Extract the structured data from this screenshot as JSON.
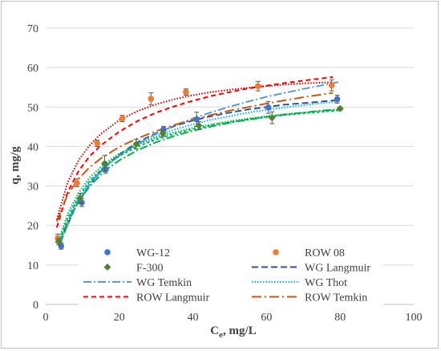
{
  "chart_data": {
    "type": "scatter",
    "title": "",
    "xlabel": "C",
    "xlabel_sub": "e",
    "xlabel_suffix": ", mg/L",
    "ylabel": "q, mg/g",
    "xlim": [
      0,
      100
    ],
    "ylim": [
      0,
      70
    ],
    "xticks": [
      0,
      20,
      40,
      60,
      80,
      100
    ],
    "yticks": [
      0,
      10,
      20,
      30,
      40,
      50,
      60,
      70
    ],
    "grid": "horizontal",
    "legend_position": "bottom-inside",
    "series": [
      {
        "name": "WG-12",
        "kind": "points",
        "marker": "circle",
        "color": "#4472C4",
        "x": [
          4.2,
          9.8,
          16.3,
          32.0,
          41.0,
          60.5,
          79.2
        ],
        "y": [
          14.8,
          25.8,
          34.2,
          44.3,
          46.9,
          49.9,
          52.0
        ],
        "err": [
          0.8,
          1.0,
          1.0,
          0.8,
          1.8,
          1.5,
          1.0
        ]
      },
      {
        "name": "ROW 08",
        "kind": "points",
        "marker": "circle",
        "color": "#ED7D31",
        "x": [
          3.3,
          8.5,
          14.0,
          20.8,
          28.6,
          38.1,
          57.7,
          77.7
        ],
        "y": [
          16.8,
          30.8,
          40.8,
          47.1,
          52.1,
          53.8,
          55.3,
          55.5
        ],
        "err": [
          1.0,
          1.0,
          0.8,
          0.8,
          1.5,
          0.8,
          1.2,
          1.4
        ]
      },
      {
        "name": "F-300",
        "kind": "points",
        "marker": "diamond",
        "color": "#548235",
        "x": [
          3.5,
          9.3,
          16.0,
          24.6,
          31.8,
          41.6,
          61.5,
          80.0
        ],
        "y": [
          15.9,
          26.9,
          35.7,
          40.6,
          43.3,
          45.3,
          47.3,
          49.6
        ],
        "err": [
          0.8,
          1.2,
          2.0,
          1.2,
          0.8,
          1.0,
          1.5,
          0.4
        ]
      },
      {
        "name": "WG Langmuir",
        "kind": "line",
        "dash": "8 4",
        "color": "#2F5597",
        "x": [
          4,
          8,
          12,
          16,
          20,
          25,
          30,
          35,
          40,
          45,
          50,
          55,
          60,
          65,
          70,
          75,
          80
        ],
        "y": [
          16.0,
          24.5,
          30.5,
          34.8,
          38.0,
          41.1,
          43.4,
          45.2,
          46.6,
          47.7,
          48.6,
          49.4,
          50.0,
          50.6,
          51.0,
          51.4,
          51.8
        ]
      },
      {
        "name": "WG Temkin",
        "kind": "line",
        "dash": "10 3 2 3",
        "color": "#5B9BD5",
        "x": [
          4,
          8,
          12,
          16,
          20,
          25,
          30,
          35,
          40,
          45,
          50,
          55,
          60,
          65,
          70,
          75,
          80
        ],
        "y": [
          15.5,
          25.0,
          30.6,
          34.6,
          37.7,
          40.7,
          43.2,
          45.3,
          47.1,
          48.7,
          50.1,
          51.4,
          52.6,
          53.6,
          54.6,
          55.5,
          56.4
        ]
      },
      {
        "name": "WG Thot",
        "kind": "line",
        "dash": "1.5 2",
        "color": "#00B0F0",
        "x": [
          4,
          8,
          12,
          16,
          20,
          25,
          30,
          35,
          40,
          45,
          50,
          55,
          60,
          65,
          70,
          75,
          80
        ],
        "y": [
          16.5,
          25.6,
          31.2,
          35.0,
          37.9,
          40.6,
          42.6,
          44.3,
          45.6,
          46.8,
          47.7,
          48.6,
          49.3,
          49.9,
          50.5,
          51.0,
          51.4
        ]
      },
      {
        "name": "ROW Langmuir",
        "kind": "line",
        "dash": "6 4",
        "color": "#FF0000",
        "x": [
          3,
          6,
          9,
          12,
          15,
          20,
          25,
          30,
          35,
          40,
          45,
          50,
          55,
          60,
          65,
          70,
          78
        ],
        "y": [
          19.5,
          28.5,
          33.9,
          37.6,
          40.3,
          43.8,
          46.5,
          48.6,
          50.2,
          51.6,
          52.8,
          53.8,
          54.7,
          55.4,
          56.1,
          56.7,
          57.6
        ]
      },
      {
        "name": "ROW Temkin",
        "kind": "line",
        "dash": "12 4 2 4",
        "color": "#C55A11",
        "x": [
          3,
          6,
          9,
          12,
          15,
          20,
          25,
          30,
          35,
          40,
          45,
          50,
          55,
          60,
          65,
          70,
          78
        ],
        "y": [
          21.0,
          27.9,
          31.9,
          34.8,
          37.0,
          39.9,
          42.1,
          43.9,
          45.5,
          46.8,
          48.0,
          49.1,
          50.0,
          50.9,
          51.7,
          52.5,
          53.6
        ]
      },
      {
        "name": "",
        "kind": "line",
        "dash": "1.5 2",
        "color": "#C00000",
        "x": [
          3,
          6,
          9,
          12,
          15,
          20,
          25,
          30,
          35,
          40,
          45,
          50,
          55,
          60,
          65,
          70,
          78
        ],
        "y": [
          21.5,
          31.0,
          36.6,
          40.4,
          43.2,
          46.7,
          49.0,
          50.7,
          52.0,
          53.0,
          53.8,
          54.4,
          54.9,
          55.3,
          55.7,
          56.0,
          56.3
        ]
      },
      {
        "name": "",
        "kind": "line",
        "dash": "3 3",
        "color": "#00B050",
        "x": [
          3.5,
          6,
          9,
          12,
          16,
          20,
          25,
          30,
          35,
          40,
          45,
          50,
          55,
          60,
          65,
          70,
          75,
          80
        ],
        "y": [
          15.5,
          22.0,
          27.4,
          31.3,
          35.0,
          37.6,
          40.0,
          41.8,
          43.2,
          44.4,
          45.4,
          46.2,
          46.9,
          47.5,
          48.0,
          48.4,
          48.8,
          49.2
        ]
      },
      {
        "name": "",
        "kind": "line",
        "dash": "1.5 2",
        "color": "#00B050",
        "x": [
          3.5,
          6,
          9,
          12,
          16,
          20,
          25,
          30,
          35,
          40,
          45,
          50,
          55,
          60,
          65,
          70,
          75,
          80
        ],
        "y": [
          16.3,
          23.0,
          28.4,
          32.2,
          35.7,
          38.2,
          40.5,
          42.2,
          43.6,
          44.7,
          45.6,
          46.4,
          47.1,
          47.7,
          48.2,
          48.6,
          49.0,
          49.3
        ]
      },
      {
        "name": "",
        "kind": "line",
        "dash": "10 3 2 3",
        "color": "#00B050",
        "x": [
          3.5,
          6,
          9,
          12,
          16,
          20,
          25,
          30,
          35,
          40,
          45,
          50,
          55,
          60,
          65,
          70,
          75,
          80
        ],
        "y": [
          15.0,
          21.0,
          26.2,
          30.0,
          33.8,
          36.5,
          39.1,
          41.1,
          42.7,
          44.0,
          45.1,
          46.0,
          46.8,
          47.5,
          48.1,
          48.6,
          49.1,
          49.5
        ]
      }
    ]
  }
}
